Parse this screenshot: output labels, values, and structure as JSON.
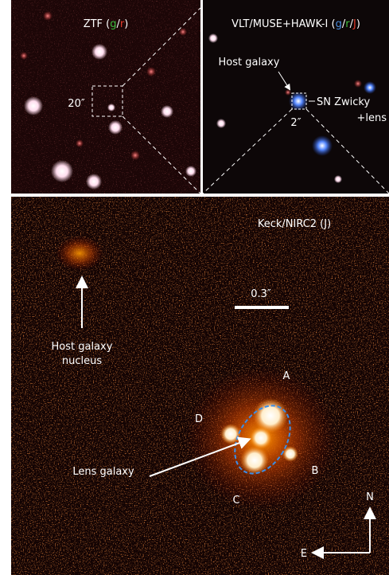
{
  "top_left": {
    "title": [
      {
        "text": "ZTF (",
        "color": "#ffffff"
      },
      {
        "text": "g",
        "color": "#3fbf3f"
      },
      {
        "text": "/",
        "color": "#ffffff"
      },
      {
        "text": "r",
        "color": "#e03a2a"
      },
      {
        "text": ")",
        "color": "#ffffff"
      }
    ],
    "scale": "20″"
  },
  "top_right": {
    "title": [
      {
        "text": "VLT/MUSE+HAWK-I (",
        "color": "#ffffff"
      },
      {
        "text": "g",
        "color": "#4a8fe0"
      },
      {
        "text": "/",
        "color": "#ffffff"
      },
      {
        "text": "r",
        "color": "#3fbf3f"
      },
      {
        "text": "/",
        "color": "#ffffff"
      },
      {
        "text": "J",
        "color": "#e03a2a"
      },
      {
        "text": ")",
        "color": "#ffffff"
      }
    ],
    "host": "Host galaxy",
    "sn": [
      "SN Zwicky",
      "+lens"
    ],
    "scale": "2″"
  },
  "bottom": {
    "title": "Keck/NIRC2 (J)",
    "scale": "0.3″",
    "host": [
      "Host galaxy",
      "nucleus"
    ],
    "images": [
      "A",
      "B",
      "C",
      "D"
    ],
    "lens": "Lens galaxy",
    "compass": [
      "N",
      "E"
    ]
  }
}
